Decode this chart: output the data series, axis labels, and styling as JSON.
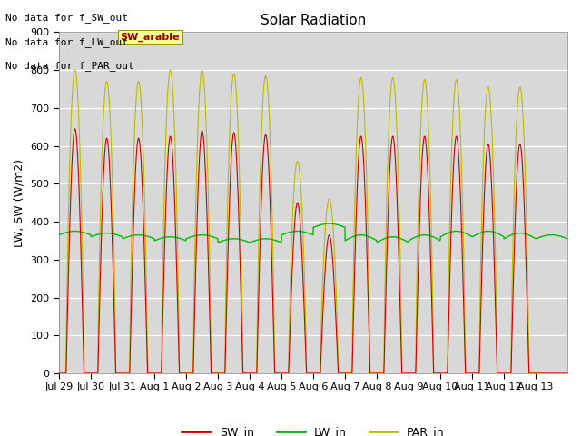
{
  "title": "Solar Radiation",
  "ylabel": "LW, SW (W/m2)",
  "fig_bg": "#ffffff",
  "plot_bg": "#d8d8d8",
  "annotations_top_left": [
    "No data for f_SW_out",
    "No data for f_LW_out",
    "No data for f_PAR_out"
  ],
  "box_label": "SW_arable",
  "box_text_color": "#990000",
  "box_bg_color": "#ffff99",
  "ylim": [
    0,
    900
  ],
  "yticks": [
    0,
    100,
    200,
    300,
    400,
    500,
    600,
    700,
    800,
    900
  ],
  "xtick_labels": [
    "Jul 29",
    "Jul 30",
    "Jul 31",
    "Aug 1",
    "Aug 2",
    "Aug 3",
    "Aug 4",
    "Aug 5",
    "Aug 6",
    "Aug 7",
    "Aug 8",
    "Aug 9",
    "Aug 10",
    "Aug 11",
    "Aug 12",
    "Aug 13"
  ],
  "legend": [
    {
      "label": "SW_in",
      "color": "#cc0000"
    },
    {
      "label": "LW_in",
      "color": "#00bb00"
    },
    {
      "label": "PAR_in",
      "color": "#bbbb00"
    }
  ],
  "n_days": 16,
  "sw_peaks": [
    645,
    620,
    620,
    625,
    640,
    635,
    630,
    450,
    365,
    625,
    625,
    625,
    625,
    605,
    605,
    0
  ],
  "par_peaks": [
    800,
    770,
    770,
    800,
    800,
    790,
    785,
    560,
    460,
    780,
    780,
    775,
    775,
    755,
    755,
    0
  ],
  "lw_base": [
    365,
    360,
    355,
    350,
    355,
    345,
    345,
    365,
    385,
    350,
    345,
    350,
    360,
    360,
    355,
    355
  ],
  "lw_peak": [
    375,
    370,
    365,
    360,
    365,
    355,
    355,
    375,
    395,
    365,
    360,
    365,
    375,
    375,
    370,
    365
  ]
}
